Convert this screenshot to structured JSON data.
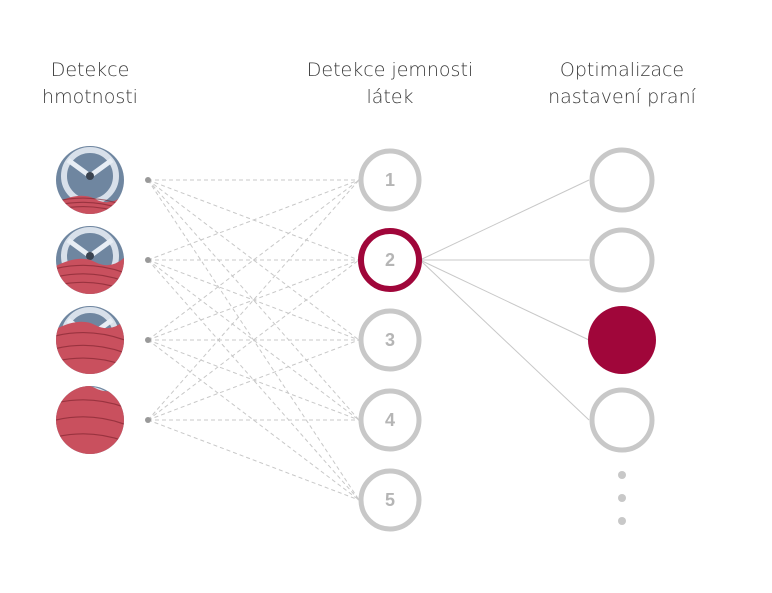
{
  "columns": [
    {
      "title_lines": [
        "Detekce",
        "hmotnosti"
      ]
    },
    {
      "title_lines": [
        "Detekce jemnosti",
        "látek"
      ]
    },
    {
      "title_lines": [
        "Optimalizace",
        "nastavení praní"
      ]
    }
  ],
  "load_levels": [
    0.25,
    0.5,
    0.75,
    1.0
  ],
  "fabric_levels": [
    "1",
    "2",
    "3",
    "4",
    "5"
  ],
  "selected_fabric": "2",
  "wash_settings_count": 4,
  "selected_setting": 3,
  "more_indicator": "vertical-ellipsis",
  "colors": {
    "accent": "#a0063a",
    "inactive": "#c8c8c8",
    "fabric": "#c9505e",
    "drum": "#8fa3b8",
    "line": "#c8c8c8"
  }
}
